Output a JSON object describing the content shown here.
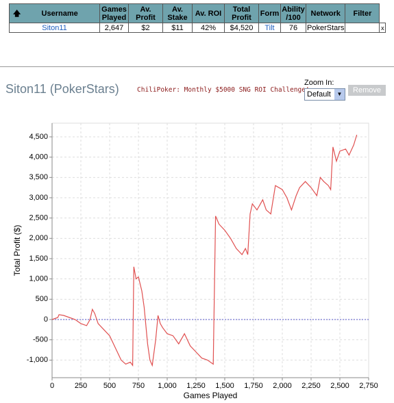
{
  "table": {
    "headers": [
      "Username",
      "Games Played",
      "Av. Profit",
      "Av. Stake",
      "Av. ROI",
      "Total Profit",
      "Form",
      "Ability /100",
      "Network",
      "Filter"
    ],
    "rows": [
      [
        "Siton11",
        "2,647",
        "$2",
        "$11",
        "42%",
        "$4,520",
        "Tilt",
        "76",
        "PokerStars",
        "x"
      ]
    ]
  },
  "header": {
    "title": "Siton11 (PokerStars)",
    "promo": "ChiliPoker: Monthly $5000 SNG ROI Challenge!"
  },
  "controls": {
    "zoom_label": "Zoom In:",
    "zoom_value": "Default",
    "remove": "Remove"
  },
  "chart_data": {
    "type": "line",
    "xlabel": "Games Played",
    "ylabel": "Total Profit ($)",
    "x": [
      0,
      50,
      60,
      100,
      150,
      200,
      250,
      300,
      330,
      350,
      370,
      400,
      450,
      500,
      550,
      600,
      640,
      680,
      700,
      710,
      730,
      750,
      780,
      800,
      830,
      850,
      870,
      900,
      920,
      940,
      960,
      1000,
      1050,
      1100,
      1150,
      1200,
      1250,
      1300,
      1350,
      1400,
      1420,
      1450,
      1500,
      1550,
      1600,
      1650,
      1680,
      1700,
      1720,
      1740,
      1780,
      1800,
      1830,
      1860,
      1900,
      1940,
      2000,
      2040,
      2080,
      2120,
      2150,
      2200,
      2250,
      2300,
      2330,
      2360,
      2400,
      2420,
      2440,
      2470,
      2500,
      2550,
      2580,
      2620,
      2647
    ],
    "series": [
      {
        "name": "Siton11",
        "color": "#e05050",
        "values": [
          0,
          50,
          120,
          100,
          50,
          0,
          -100,
          -150,
          0,
          250,
          150,
          -100,
          -250,
          -400,
          -700,
          -1000,
          -1100,
          -1050,
          -1130,
          1300,
          1000,
          1050,
          700,
          300,
          -600,
          -1000,
          -1130,
          -500,
          100,
          -100,
          -200,
          -350,
          -400,
          -600,
          -350,
          -650,
          -800,
          -950,
          -1000,
          -1100,
          2550,
          2350,
          2200,
          2000,
          1750,
          1600,
          1750,
          1600,
          2600,
          2850,
          2700,
          2800,
          2950,
          2700,
          2600,
          3300,
          3200,
          3000,
          2700,
          3050,
          3250,
          3400,
          3250,
          3050,
          3500,
          3400,
          3300,
          3200,
          4250,
          3900,
          4150,
          4200,
          4050,
          4300,
          4550
        ]
      }
    ],
    "xlim": [
      0,
      2750
    ],
    "ylim": [
      -1433,
      4837
    ],
    "xticks": [
      0,
      250,
      500,
      750,
      {
        "value": 1000,
        "label": "1,000"
      },
      {
        "value": 1250,
        "label": "1,250"
      },
      {
        "value": 1500,
        "label": "1,500"
      },
      {
        "value": 1750,
        "label": "1,750"
      },
      {
        "value": 2000,
        "label": "2,000"
      },
      {
        "value": 2250,
        "label": "2,250"
      },
      {
        "value": 2500,
        "label": "2,500"
      },
      {
        "value": 2750,
        "label": "2,750"
      }
    ],
    "yticks": [
      {
        "value": -1000,
        "label": "-1,000"
      },
      -500,
      0,
      500,
      {
        "value": 1000,
        "label": "1,000"
      },
      {
        "value": 1500,
        "label": "1,500"
      },
      {
        "value": 2000,
        "label": "2,000"
      },
      {
        "value": 2500,
        "label": "2,500"
      },
      {
        "value": 3000,
        "label": "3,000"
      },
      {
        "value": 3500,
        "label": "3,500"
      },
      {
        "value": 4000,
        "label": "4,000"
      },
      {
        "value": 4500,
        "label": "4,500"
      }
    ],
    "grid": true
  }
}
